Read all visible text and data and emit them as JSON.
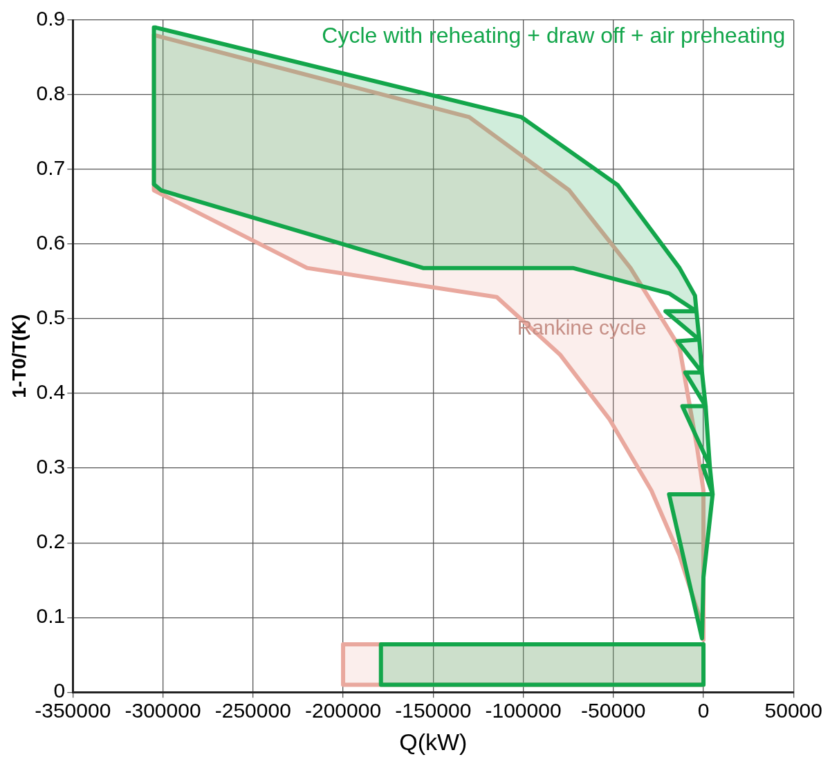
{
  "chart_data": {
    "type": "area",
    "xlabel": "Q(kW)",
    "ylabel": "1-T0/T(K)",
    "xlim": [
      -350000,
      50000
    ],
    "xticks": [
      -350000,
      -300000,
      -250000,
      -200000,
      -150000,
      -100000,
      -50000,
      0,
      50000
    ],
    "ylim": [
      0,
      0.9
    ],
    "yticks": [
      0,
      0.1,
      0.2,
      0.3,
      0.4,
      0.5,
      0.6,
      0.7,
      0.8,
      0.9
    ],
    "grid": true,
    "legend": false,
    "series": [
      {
        "name": "Cycle with reheating + draw off + air preheating",
        "color": "#13a64b",
        "x": [
          -304000,
          -101000,
          -47600,
          -13300,
          -4700,
          -3900,
          -21100,
          -2300,
          -14400,
          -800,
          -10100,
          1200,
          -11700,
          3500,
          -400,
          5100,
          -19100,
          -800,
          0,
          5100,
          3500,
          1200,
          -800,
          -2300,
          -3900,
          -19100,
          -72500,
          -155600,
          -301000,
          -305000,
          -305000,
          -304000
        ],
        "values": [
          0.89,
          0.77,
          0.679,
          0.568,
          0.531,
          0.51,
          0.51,
          0.472,
          0.47,
          0.428,
          0.428,
          0.383,
          0.383,
          0.303,
          0.303,
          0.265,
          0.265,
          0.072,
          0.154,
          0.265,
          0.303,
          0.383,
          0.428,
          0.472,
          0.51,
          0.534,
          0.568,
          0.568,
          0.672,
          0.68,
          0.89,
          0.89
        ]
      },
      {
        "color": "#13a64b",
        "x": [
          -179000,
          0,
          0,
          -179000,
          -179000
        ],
        "values": [
          0.064,
          0.064,
          0.01,
          0.01,
          0.064
        ]
      },
      {
        "name": "Rankine cycle",
        "color": "#e9a89e",
        "x": [
          -305000,
          -130000,
          -74500,
          -40500,
          -13300,
          -3500,
          0,
          0,
          -1600,
          -13300,
          -28900,
          -52300,
          -79600,
          -114700,
          -220000,
          -305000,
          -305000
        ],
        "values": [
          0.88,
          0.77,
          0.672,
          0.568,
          0.462,
          0.327,
          0.27,
          0.07,
          0.096,
          0.183,
          0.27,
          0.366,
          0.452,
          0.529,
          0.568,
          0.672,
          0.88
        ]
      },
      {
        "color": "#e9a89e",
        "x": [
          -200000,
          0,
          0,
          -200000,
          -200000
        ],
        "values": [
          0.064,
          0.064,
          0.01,
          0.01,
          0.064
        ]
      }
    ]
  }
}
